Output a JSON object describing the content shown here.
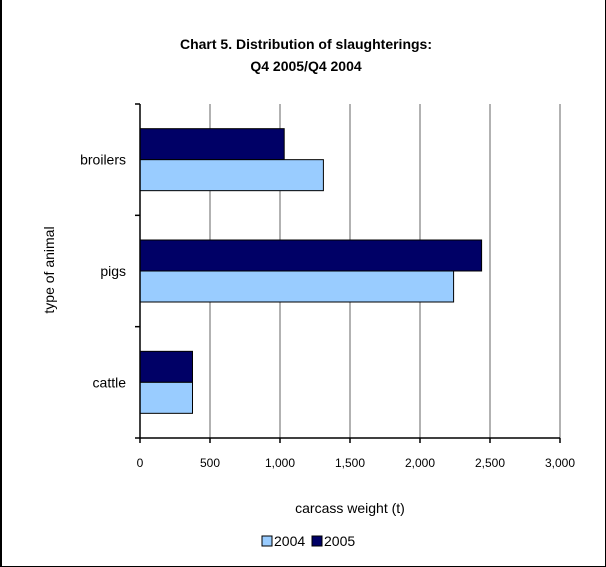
{
  "chart_data": {
    "type": "bar",
    "orientation": "horizontal",
    "title_lines": [
      "Chart 5.  Distribution of slaughterings:",
      "Q4 2005/Q4 2004"
    ],
    "categories": [
      "broilers",
      "pigs",
      "cattle"
    ],
    "series": [
      {
        "name": "2005",
        "color": "#000066",
        "values": [
          1030,
          2440,
          375
        ]
      },
      {
        "name": "2004",
        "color": "#99ccff",
        "values": [
          1310,
          2240,
          375
        ]
      }
    ],
    "xlabel": "carcass weight (t)",
    "ylabel": "type of animal",
    "xlim": [
      0,
      3000
    ],
    "xticks": [
      "0",
      "500",
      "1,000",
      "1,500",
      "2,000",
      "2,500",
      "3,000"
    ],
    "grid": "vertical",
    "legend_position": "bottom"
  }
}
